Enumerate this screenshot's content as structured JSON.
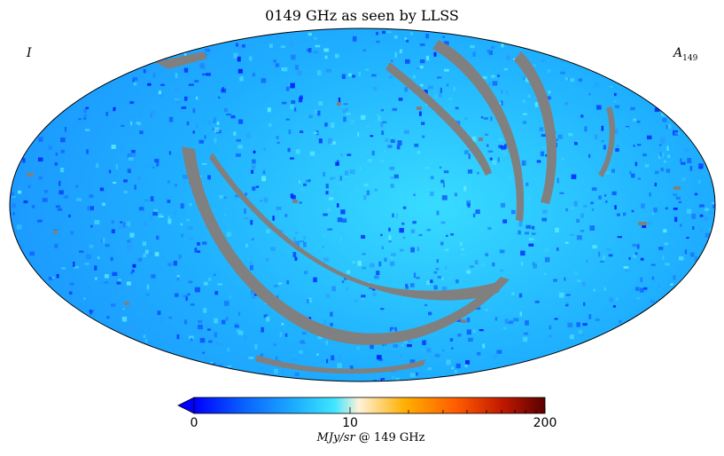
{
  "title": "0149 GHz as seen by LLSS",
  "corner_left": "I",
  "corner_right_main": "A",
  "corner_right_sub": "149",
  "colorbar": {
    "min_label": "0",
    "mid_label": "10",
    "max_label": "200",
    "units_italic": "MJy/sr",
    "units_rest": " @ 149 GHz",
    "colors": [
      "#0000ff",
      "#0a66ff",
      "#1fb4ff",
      "#3ee6ff",
      "#fff2d8",
      "#ffb000",
      "#ff5a00",
      "#c01800",
      "#5a0000"
    ],
    "extend": "min",
    "scale": "symlog"
  },
  "map": {
    "projection": "mollweide",
    "base_color": "#1fa8ff",
    "masked_color": "#808080"
  }
}
